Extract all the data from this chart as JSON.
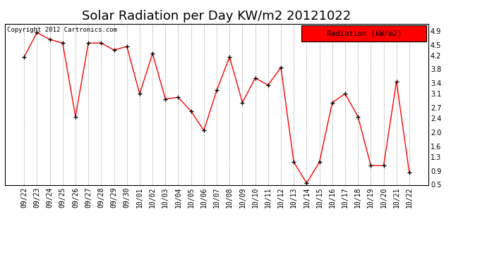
{
  "title": "Solar Radiation per Day KW/m2 20121022",
  "copyright": "Copyright 2012 Cartronics.com",
  "legend_label": "Radiation (kW/m2)",
  "dates": [
    "09/22",
    "09/23",
    "09/24",
    "09/25",
    "09/26",
    "09/27",
    "09/28",
    "09/29",
    "09/30",
    "10/01",
    "10/02",
    "10/03",
    "10/04",
    "10/05",
    "10/06",
    "10/07",
    "10/08",
    "10/09",
    "10/10",
    "10/11",
    "10/12",
    "10/13",
    "10/14",
    "10/15",
    "10/16",
    "10/17",
    "10/18",
    "10/19",
    "10/20",
    "10/21",
    "10/22"
  ],
  "values": [
    4.15,
    4.85,
    4.65,
    4.55,
    2.45,
    4.55,
    4.55,
    4.35,
    4.45,
    3.1,
    4.25,
    2.95,
    3.0,
    2.6,
    2.05,
    3.2,
    4.15,
    2.85,
    3.55,
    3.35,
    3.85,
    1.15,
    0.55,
    1.15,
    2.85,
    3.1,
    2.45,
    1.05,
    1.05,
    3.45,
    0.85
  ],
  "line_color": "red",
  "marker_color": "black",
  "bg_color": "#ffffff",
  "plot_bg_color": "#ffffff",
  "grid_color": "#aaaaaa",
  "ylim_min": 0.5,
  "ylim_max": 5.1,
  "yticks": [
    0.5,
    0.9,
    1.3,
    1.6,
    2.0,
    2.4,
    2.7,
    3.1,
    3.4,
    3.8,
    4.2,
    4.5,
    4.9
  ],
  "title_fontsize": 13,
  "tick_fontsize": 7,
  "legend_fontsize": 7.5,
  "copyright_fontsize": 6.5
}
